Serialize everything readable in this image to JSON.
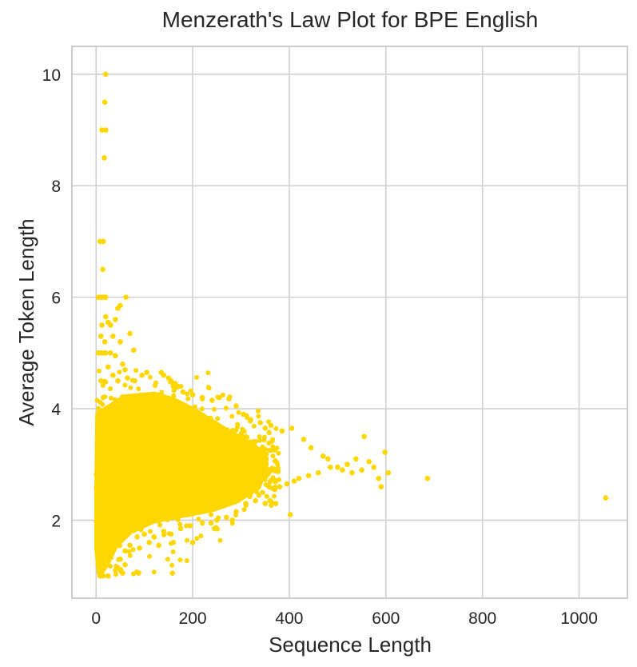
{
  "chart_data": {
    "type": "scatter",
    "title": "Menzerath's Law Plot for BPE English",
    "xlabel": "Sequence Length",
    "ylabel": "Average Token Length",
    "xlim": [
      -50,
      1100
    ],
    "ylim": [
      0.6,
      10.5
    ],
    "xticks": [
      0,
      200,
      400,
      600,
      800,
      1000
    ],
    "yticks": [
      2,
      4,
      6,
      8,
      10
    ],
    "grid": true,
    "color": "#FFD700",
    "series": [
      {
        "points": [
          [
            20,
            10.0
          ],
          [
            18,
            9.5
          ],
          [
            12,
            9.0
          ],
          [
            20,
            9.0
          ],
          [
            17,
            8.5
          ],
          [
            8,
            7.0
          ],
          [
            15,
            7.0
          ],
          [
            14,
            6.5
          ],
          [
            5,
            6.0
          ],
          [
            10,
            6.0
          ],
          [
            15,
            6.0
          ],
          [
            20,
            6.0
          ],
          [
            62,
            6.0
          ],
          [
            45,
            5.8
          ],
          [
            50,
            5.85
          ],
          [
            20,
            5.65
          ],
          [
            25,
            5.55
          ],
          [
            40,
            5.6
          ],
          [
            12,
            5.5
          ],
          [
            30,
            5.5
          ],
          [
            10,
            5.3
          ],
          [
            35,
            5.3
          ],
          [
            70,
            5.35
          ],
          [
            18,
            5.2
          ],
          [
            50,
            5.2
          ],
          [
            78,
            5.05
          ],
          [
            5,
            5.0
          ],
          [
            10,
            5.0
          ],
          [
            15,
            5.0
          ],
          [
            20,
            5.0
          ],
          [
            30,
            5.0
          ],
          [
            40,
            4.95
          ],
          [
            55,
            4.8
          ],
          [
            60,
            4.7
          ],
          [
            25,
            4.75
          ],
          [
            35,
            4.6
          ],
          [
            45,
            4.5
          ],
          [
            65,
            4.55
          ],
          [
            80,
            4.5
          ],
          [
            95,
            4.6
          ],
          [
            105,
            4.65
          ],
          [
            135,
            4.65
          ],
          [
            140,
            4.6
          ],
          [
            150,
            4.55
          ],
          [
            155,
            4.5
          ],
          [
            160,
            4.45
          ],
          [
            170,
            4.4
          ],
          [
            180,
            4.3
          ],
          [
            200,
            4.25
          ],
          [
            220,
            4.2
          ],
          [
            240,
            4.15
          ],
          [
            255,
            4.2
          ],
          [
            275,
            4.18
          ],
          [
            290,
            4.05
          ],
          [
            305,
            3.9
          ],
          [
            320,
            3.8
          ],
          [
            340,
            3.75
          ],
          [
            350,
            3.65
          ],
          [
            362,
            3.7
          ],
          [
            385,
            3.6
          ],
          [
            405,
            3.65
          ],
          [
            430,
            3.45
          ],
          [
            445,
            3.3
          ],
          [
            470,
            3.15
          ],
          [
            480,
            3.1
          ],
          [
            500,
            2.95
          ],
          [
            520,
            3.0
          ],
          [
            538,
            3.1
          ],
          [
            555,
            3.5
          ],
          [
            565,
            3.05
          ],
          [
            575,
            2.95
          ],
          [
            550,
            2.9
          ],
          [
            530,
            2.85
          ],
          [
            510,
            2.9
          ],
          [
            485,
            2.95
          ],
          [
            460,
            2.85
          ],
          [
            440,
            2.8
          ],
          [
            420,
            2.75
          ],
          [
            410,
            2.7
          ],
          [
            395,
            2.65
          ],
          [
            380,
            2.6
          ],
          [
            370,
            2.55
          ],
          [
            360,
            2.35
          ],
          [
            402,
            2.1
          ],
          [
            372,
            2.3
          ],
          [
            350,
            2.3
          ],
          [
            330,
            2.35
          ],
          [
            310,
            2.3
          ],
          [
            290,
            2.15
          ],
          [
            282,
            2.0
          ],
          [
            270,
            2.05
          ],
          [
            250,
            2.0
          ],
          [
            238,
            1.95
          ],
          [
            245,
            1.85
          ],
          [
            220,
            1.95
          ],
          [
            195,
            1.9
          ],
          [
            175,
            1.85
          ],
          [
            155,
            1.75
          ],
          [
            140,
            1.8
          ],
          [
            120,
            1.7
          ],
          [
            100,
            1.75
          ],
          [
            85,
            1.7
          ],
          [
            70,
            1.55
          ],
          [
            60,
            1.45
          ],
          [
            50,
            1.3
          ],
          [
            45,
            1.15
          ],
          [
            40,
            1.1
          ],
          [
            25,
            1.0
          ],
          [
            15,
            1.0
          ],
          [
            8,
            1.0
          ],
          [
            88,
            1.05
          ],
          [
            158,
            1.05
          ],
          [
            55,
            1.05
          ],
          [
            60,
            1.2
          ],
          [
            90,
            1.5
          ],
          [
            110,
            1.6
          ],
          [
            130,
            1.55
          ],
          [
            160,
            1.6
          ],
          [
            200,
            1.6
          ],
          [
            598,
            3.22
          ],
          [
            605,
            2.85
          ],
          [
            590,
            2.6
          ],
          [
            585,
            2.75
          ],
          [
            686,
            2.75
          ],
          [
            1055,
            2.4
          ],
          [
            345,
            3.1
          ],
          [
            360,
            2.9
          ],
          [
            330,
            2.7
          ],
          [
            315,
            3.2
          ],
          [
            300,
            2.5
          ],
          [
            265,
            2.45
          ],
          [
            285,
            3.4
          ],
          [
            230,
            3.8
          ],
          [
            210,
            2.3
          ],
          [
            190,
            2.25
          ],
          [
            165,
            2.1
          ],
          [
            145,
            2.2
          ],
          [
            125,
            2.05
          ],
          [
            105,
            2.0
          ],
          [
            75,
            2.1
          ],
          [
            65,
            2.3
          ],
          [
            30,
            2.0
          ],
          [
            22,
            1.5
          ],
          [
            12,
            1.3
          ],
          [
            5,
            4.0
          ],
          [
            5,
            3.5
          ],
          [
            5,
            3.0
          ],
          [
            5,
            2.5
          ],
          [
            8,
            2.0
          ],
          [
            10,
            4.5
          ],
          [
            12,
            3.8
          ],
          [
            15,
            4.2
          ]
        ]
      }
    ]
  }
}
